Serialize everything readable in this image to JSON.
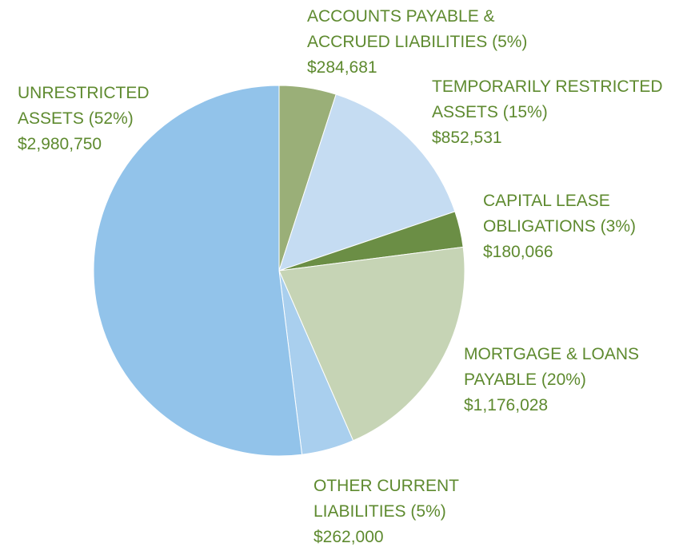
{
  "chart_data": {
    "type": "pie",
    "categories": [
      [
        "ACCOUNTS PAYABLE &",
        "ACCRUED LIABILITIES"
      ],
      [
        "TEMPORARILY RESTRICTED",
        "ASSETS"
      ],
      [
        "CAPITAL LEASE",
        "OBLIGATIONS"
      ],
      [
        "MORTGAGE & LOANS",
        "PAYABLE"
      ],
      [
        "OTHER CURRENT",
        "LIABILITIES"
      ],
      [
        "UNRESTRICTED",
        "ASSETS"
      ]
    ],
    "percent_labels": [
      "(5%)",
      "(15%)",
      "(3%)",
      "(20%)",
      "(5%)",
      "(52%)"
    ],
    "values": [
      284681,
      852531,
      180066,
      1176028,
      262000,
      2980750
    ],
    "value_labels": [
      "$284,681",
      "$852,531",
      "$180,066",
      "$1,176,028",
      "$262,000",
      "$2,980,750"
    ],
    "colors": [
      "#9aaf78",
      "#c5dcf2",
      "#6b8e45",
      "#c6d4b5",
      "#a9cfee",
      "#92c3ea"
    ]
  }
}
